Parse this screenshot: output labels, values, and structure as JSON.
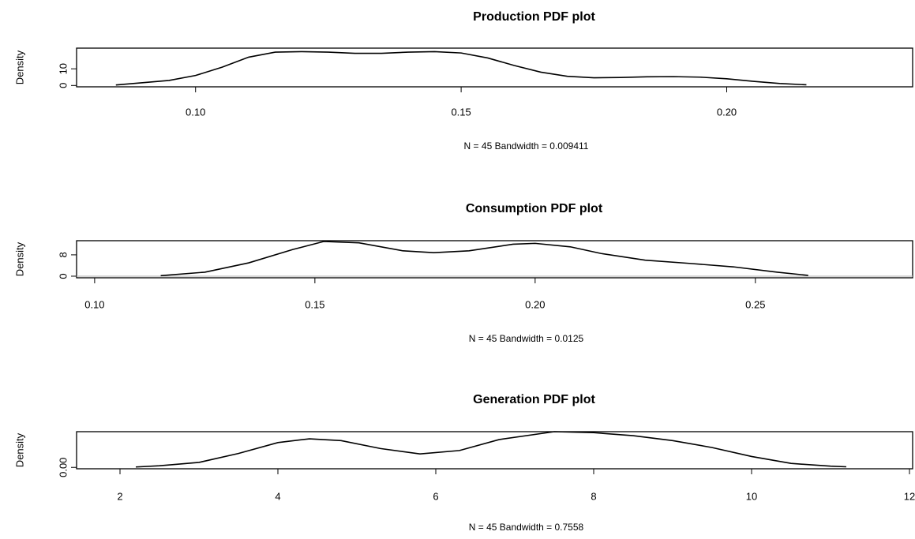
{
  "chart_data": [
    {
      "type": "line",
      "title": "Production PDF plot",
      "xlabel": "N = 45   Bandwidth = 0.009411",
      "ylabel": "Density",
      "x": [
        0.085,
        0.095,
        0.1,
        0.105,
        0.11,
        0.115,
        0.12,
        0.125,
        0.13,
        0.135,
        0.14,
        0.145,
        0.15,
        0.155,
        0.16,
        0.165,
        0.17,
        0.175,
        0.18,
        0.185,
        0.19,
        0.195,
        0.2,
        0.205,
        0.21,
        0.215
      ],
      "values": [
        0.3,
        3,
        6,
        11,
        17,
        20,
        20.3,
        20,
        19.3,
        19.3,
        20,
        20.3,
        19.5,
        16.5,
        12,
        8,
        5.5,
        4.6,
        4.8,
        5.2,
        5.3,
        5,
        4,
        2.5,
        1.2,
        0.4
      ],
      "color": "#000000",
      "xlim": [
        0.0776,
        0.235
      ],
      "ylim": [
        -0.8,
        22.4
      ],
      "xticks": [
        {
          "value": 0.1,
          "label": "0.10"
        },
        0.15,
        {
          "value": 0.2,
          "label": "0.20"
        }
      ],
      "yticks": [
        0,
        10
      ],
      "zero_line": false
    },
    {
      "type": "line",
      "title": "Consumption PDF plot",
      "xlabel": "N = 45   Bandwidth = 0.0125",
      "ylabel": "Density",
      "x": [
        0.115,
        0.125,
        0.135,
        0.145,
        0.152,
        0.16,
        0.17,
        0.177,
        0.185,
        0.195,
        0.2,
        0.208,
        0.215,
        0.225,
        0.235,
        0.245,
        0.255,
        0.262
      ],
      "values": [
        0.2,
        1.5,
        5,
        10,
        13,
        12.5,
        9.5,
        8.8,
        9.5,
        12,
        12.3,
        11,
        8.5,
        6,
        4.8,
        3.5,
        1.5,
        0.3
      ],
      "color": "#000000",
      "xlim": [
        0.0959,
        0.2857
      ],
      "ylim": [
        -0.6,
        13.3
      ],
      "xticks": [
        {
          "value": 0.1,
          "label": "0.10"
        },
        0.15,
        {
          "value": 0.2,
          "label": "0.20"
        },
        0.25
      ],
      "yticks": [
        0,
        8
      ],
      "zero_line": true
    },
    {
      "type": "line",
      "title": "Generation PDF plot",
      "xlabel": "N = 45   Bandwidth = 0.7558",
      "ylabel": "Density",
      "x": [
        2.2,
        2.5,
        3.0,
        3.5,
        4.0,
        4.4,
        4.8,
        5.3,
        5.8,
        6.3,
        6.8,
        7.5,
        8.0,
        8.5,
        9.0,
        9.5,
        10.0,
        10.5,
        11.0,
        11.2
      ],
      "values": [
        0.002,
        0.008,
        0.025,
        0.07,
        0.125,
        0.144,
        0.135,
        0.095,
        0.068,
        0.085,
        0.14,
        0.18,
        0.175,
        0.16,
        0.135,
        0.1,
        0.055,
        0.02,
        0.006,
        0.003
      ],
      "color": "#000000",
      "xlim": [
        1.45,
        12.04
      ],
      "ylim": [
        -0.007,
        0.18
      ],
      "xticks": [
        2,
        4,
        6,
        8,
        10,
        12
      ],
      "yticks": [
        {
          "value": 0,
          "label": "0.00"
        }
      ],
      "zero_line": false
    }
  ]
}
